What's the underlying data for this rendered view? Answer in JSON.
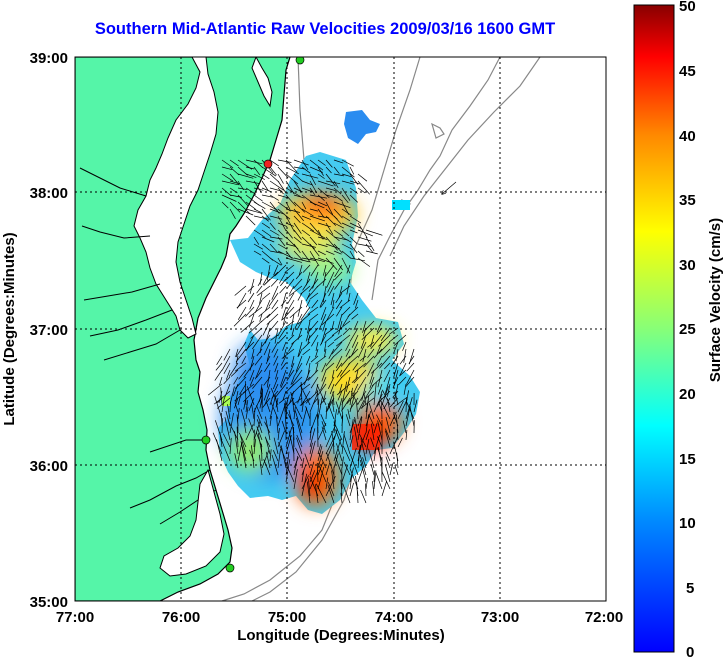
{
  "title": "Southern Mid-Atlantic Raw Velocities 2009/03/16 1600 GMT",
  "xlabel": "Longitude (Degrees:Minutes)",
  "ylabel": "Latitude (Degrees:Minutes)",
  "colorbar_label": "Surface Velocity (cm/s)",
  "x_ticks": [
    "77:00",
    "76:00",
    "75:00",
    "74:00",
    "73:00",
    "72:00"
  ],
  "y_ticks": [
    "39:00",
    "38:00",
    "37:00",
    "36:00",
    "35:00"
  ],
  "colorbar_ticks": [
    "50",
    "45",
    "40",
    "35",
    "30",
    "25",
    "20",
    "15",
    "10",
    "5",
    "0"
  ],
  "colors": {
    "land": "#55f5a8",
    "coastline": "#000000",
    "bathymetry": "#888888",
    "title": "#0000ff",
    "station": "#22cc22",
    "station_red": "#ee2222"
  },
  "chart_data": {
    "type": "heatmap",
    "map_type": "surface current velocity field with vectors",
    "xlim": [
      -77,
      -72
    ],
    "ylim": [
      35,
      39
    ],
    "color_range": [
      0,
      50
    ],
    "units": "cm/s",
    "grid": true,
    "colormap": "jet",
    "velocity_cells": [
      {
        "lon": -74.7,
        "lat": 38.0,
        "speed": 35
      },
      {
        "lon": -74.55,
        "lat": 37.93,
        "speed": 40
      },
      {
        "lon": -75.0,
        "lat": 37.8,
        "speed": 25
      },
      {
        "lon": -74.6,
        "lat": 37.5,
        "speed": 16
      },
      {
        "lon": -74.25,
        "lat": 37.0,
        "speed": 28
      },
      {
        "lon": -74.0,
        "lat": 36.7,
        "speed": 24
      },
      {
        "lon": -73.95,
        "lat": 36.4,
        "speed": 38
      },
      {
        "lon": -74.2,
        "lat": 36.3,
        "speed": 44
      },
      {
        "lon": -74.75,
        "lat": 36.0,
        "speed": 40
      },
      {
        "lon": -74.7,
        "lat": 35.85,
        "speed": 46
      },
      {
        "lon": -75.3,
        "lat": 36.5,
        "speed": 8
      },
      {
        "lon": -74.4,
        "lat": 38.5,
        "speed": 6
      }
    ],
    "stations": [
      {
        "lon": -75.1,
        "lat": 39.0,
        "color": "green"
      },
      {
        "lon": -75.2,
        "lat": 38.2,
        "color": "red"
      },
      {
        "lon": -75.7,
        "lat": 36.2,
        "color": "green"
      },
      {
        "lon": -75.5,
        "lat": 35.25,
        "color": "green"
      }
    ]
  }
}
